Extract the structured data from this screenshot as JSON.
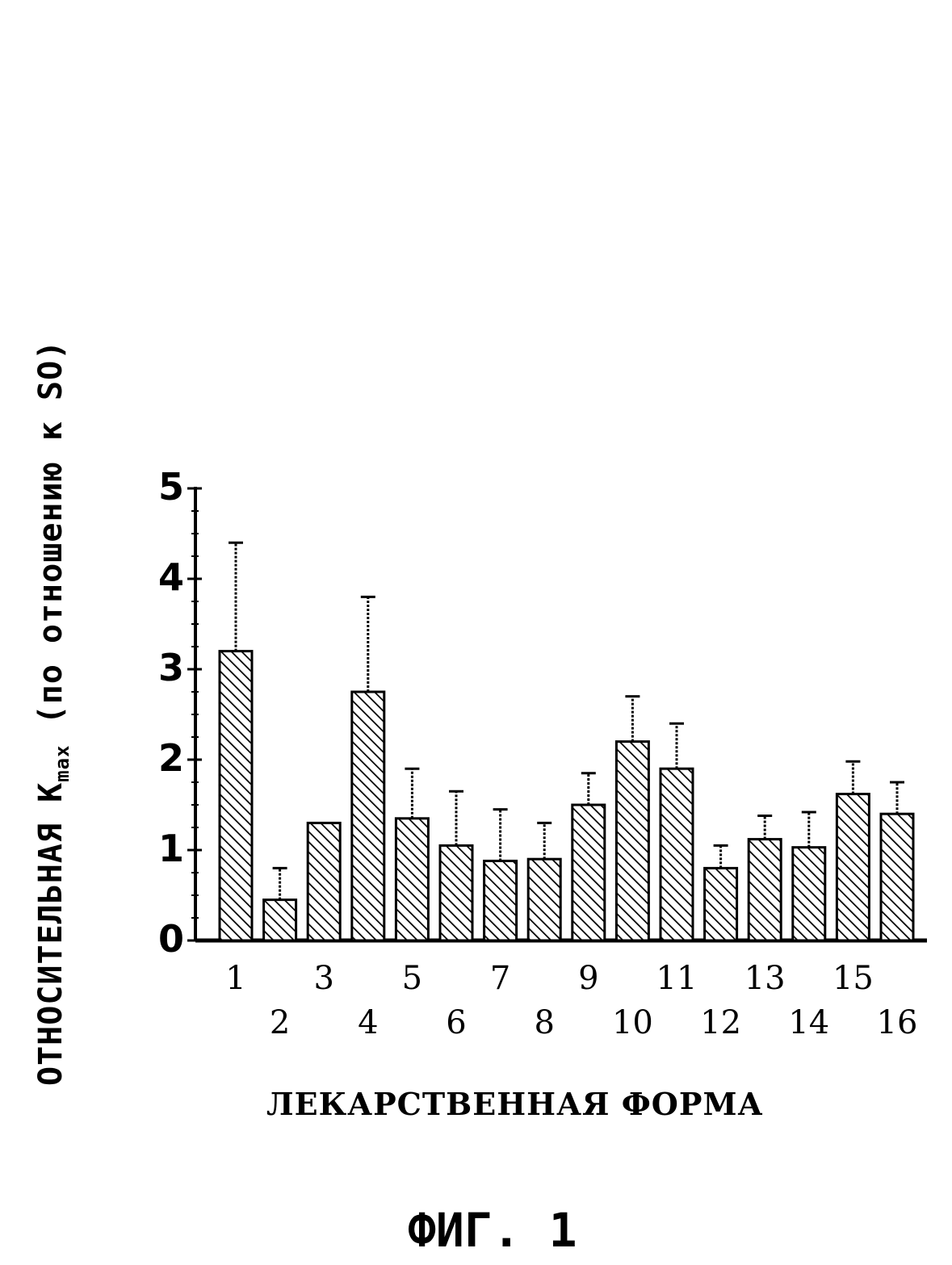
{
  "chart_data": {
    "type": "bar",
    "categories": [
      "1",
      "2",
      "3",
      "4",
      "5",
      "6",
      "7",
      "8",
      "9",
      "10",
      "11",
      "12",
      "13",
      "14",
      "15",
      "16"
    ],
    "values": [
      3.2,
      0.45,
      1.3,
      2.75,
      1.35,
      1.05,
      0.88,
      0.9,
      1.5,
      2.2,
      1.9,
      0.8,
      1.12,
      1.03,
      1.62,
      1.4
    ],
    "error_upper": [
      4.4,
      0.8,
      1.3,
      3.8,
      1.9,
      1.65,
      1.45,
      1.3,
      1.85,
      2.7,
      2.4,
      1.05,
      1.38,
      1.42,
      1.98,
      1.75
    ],
    "ylim": [
      0,
      5
    ],
    "yticks": [
      "0",
      "1",
      "2",
      "3",
      "4",
      "5"
    ],
    "ylabel_main": "ОТНОСИТЕЛЬНАЯ  К",
    "ylabel_sub": "max",
    "ylabel_tail": "  (по отношению к SO)",
    "xlabel": "ЛЕКАРСТВЕННАЯ ФОРМА",
    "grid": false,
    "legend": "none",
    "bar_pattern": "diagonal-hatch"
  },
  "caption": "ФИГ. 1",
  "colors": {
    "ink": "#000000",
    "background": "#ffffff"
  }
}
